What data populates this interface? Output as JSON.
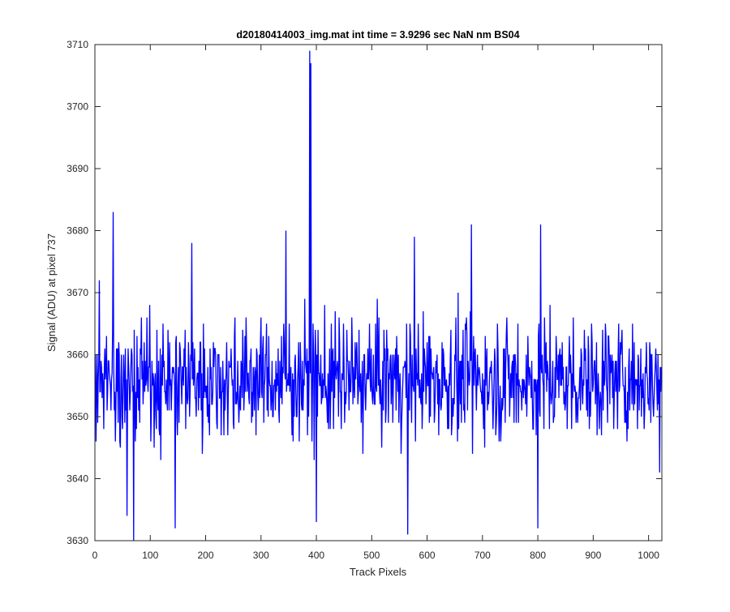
{
  "chart_data": {
    "type": "line",
    "title": "d20180414003_img.mat int time = 3.9296 sec  NaN nm BS04",
    "xlabel": "Track Pixels",
    "ylabel": "Signal (ADU) at pixel 737",
    "xlim": [
      0,
      1024
    ],
    "ylim": [
      3630,
      3710
    ],
    "x_ticks": [
      0,
      100,
      200,
      300,
      400,
      500,
      600,
      700,
      800,
      900,
      1000
    ],
    "y_ticks": [
      3630,
      3640,
      3650,
      3660,
      3670,
      3680,
      3690,
      3700,
      3710
    ],
    "grid": false,
    "series": [
      {
        "color": "#0000ff",
        "n_points": 1024,
        "x_start": 1,
        "x_step": 1,
        "baseline_mean": 3656,
        "noise_range": [
          3641,
          3676
        ],
        "notable_points": [
          {
            "x": 33,
            "y": 3683
          },
          {
            "x": 58,
            "y": 3634
          },
          {
            "x": 70,
            "y": 3630
          },
          {
            "x": 145,
            "y": 3632
          },
          {
            "x": 175,
            "y": 3678
          },
          {
            "x": 345,
            "y": 3680
          },
          {
            "x": 388,
            "y": 3709
          },
          {
            "x": 390,
            "y": 3707
          },
          {
            "x": 400,
            "y": 3633
          },
          {
            "x": 565,
            "y": 3631
          },
          {
            "x": 577,
            "y": 3679
          },
          {
            "x": 680,
            "y": 3681
          },
          {
            "x": 800,
            "y": 3632
          },
          {
            "x": 805,
            "y": 3681
          },
          {
            "x": 1020,
            "y": 3641
          }
        ]
      }
    ]
  }
}
